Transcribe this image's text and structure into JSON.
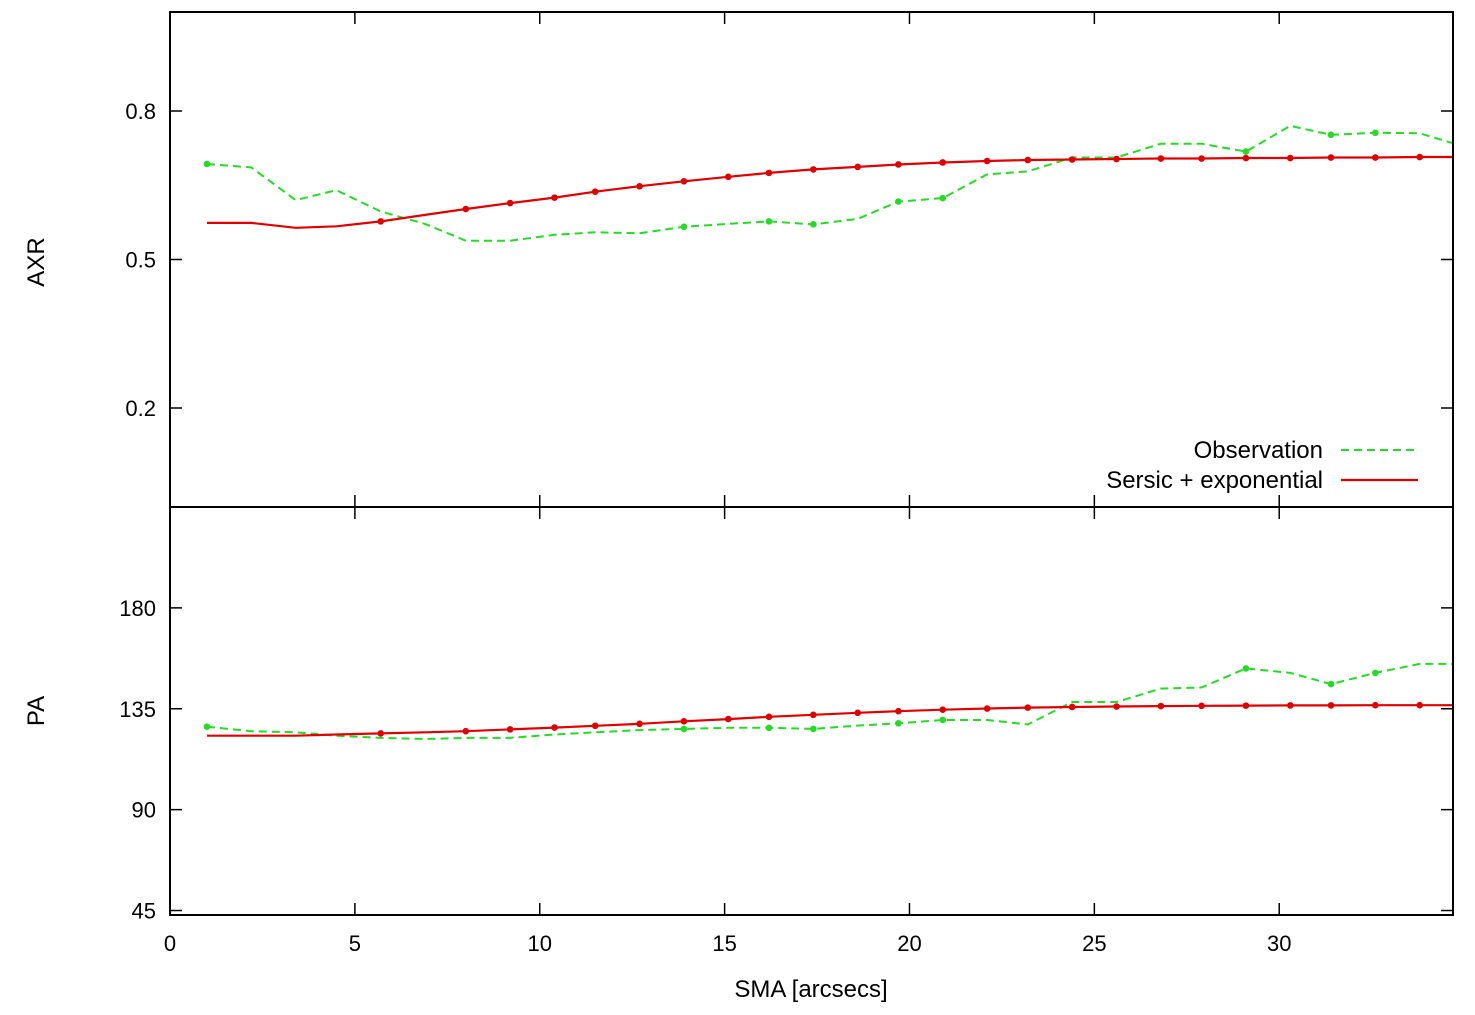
{
  "chart_data": {
    "type": "line",
    "x_label": "SMA [arcsecs]",
    "x_ticks": [
      0,
      5,
      10,
      15,
      20,
      25,
      30
    ],
    "xlim": [
      0,
      34.7
    ],
    "colors": {
      "observation": "#22dd22",
      "model": "#e00000"
    },
    "legend_position": "bottom-right of top panel",
    "panels": [
      {
        "ylabel": "AXR",
        "ylim": [
          0,
          1.0
        ],
        "y_ticks": [
          0.2,
          0.5,
          0.8
        ],
        "y_tick_labels": [
          "0.2",
          "0.5",
          "0.8"
        ],
        "series": [
          {
            "name": "Observation",
            "style": "dashed",
            "x": [
              1.0,
              2.2,
              3.4,
              4.5,
              5.7,
              6.9,
              8.0,
              9.2,
              10.4,
              11.5,
              12.7,
              13.9,
              15.1,
              16.2,
              17.4,
              18.6,
              19.7,
              20.9,
              22.1,
              23.2,
              24.4,
              25.6,
              26.8,
              27.9,
              29.1,
              30.3,
              31.4,
              32.6,
              33.8,
              34.7
            ],
            "y": [
              0.693,
              0.686,
              0.62,
              0.64,
              0.597,
              0.572,
              0.538,
              0.538,
              0.55,
              0.555,
              0.553,
              0.566,
              0.572,
              0.577,
              0.571,
              0.582,
              0.617,
              0.624,
              0.672,
              0.678,
              0.706,
              0.706,
              0.734,
              0.734,
              0.718,
              0.77,
              0.752,
              0.756,
              0.755,
              0.735
            ],
            "markers_at": [
              1.0,
              13.9,
              16.2,
              17.4,
              19.7,
              20.9,
              29.1,
              31.4,
              32.6
            ]
          },
          {
            "name": "Sersic + exponential",
            "style": "solid",
            "x": [
              1.0,
              2.2,
              3.4,
              4.5,
              5.7,
              6.9,
              8.0,
              9.2,
              10.4,
              11.5,
              12.7,
              13.9,
              15.1,
              16.2,
              17.4,
              18.6,
              19.7,
              20.9,
              22.1,
              23.2,
              24.4,
              25.6,
              26.8,
              27.9,
              29.1,
              30.3,
              31.4,
              32.6,
              33.8,
              34.7
            ],
            "y": [
              0.574,
              0.574,
              0.564,
              0.567,
              0.577,
              0.59,
              0.602,
              0.614,
              0.625,
              0.637,
              0.648,
              0.658,
              0.667,
              0.675,
              0.682,
              0.687,
              0.692,
              0.696,
              0.699,
              0.701,
              0.702,
              0.703,
              0.704,
              0.704,
              0.705,
              0.705,
              0.706,
              0.706,
              0.707,
              0.707
            ],
            "markers_at": [
              5.7,
              8.0,
              9.2,
              10.4,
              11.5,
              12.7,
              13.9,
              15.1,
              16.2,
              17.4,
              18.6,
              19.7,
              20.9,
              22.1,
              23.2,
              24.4,
              25.6,
              26.8,
              27.9,
              29.1,
              30.3,
              31.4,
              32.6,
              33.8
            ]
          }
        ]
      },
      {
        "ylabel": "PA",
        "ylim": [
          43,
          225
        ],
        "y_ticks": [
          45,
          90,
          135,
          180
        ],
        "y_tick_labels": [
          "45",
          "90",
          "135",
          "180"
        ],
        "series": [
          {
            "name": "Observation",
            "style": "dashed",
            "x": [
              1.0,
              2.2,
              3.4,
              4.5,
              5.7,
              6.9,
              8.0,
              9.2,
              10.4,
              11.5,
              12.7,
              13.9,
              15.1,
              16.2,
              17.4,
              18.6,
              19.7,
              20.9,
              22.1,
              23.2,
              24.4,
              25.6,
              26.8,
              27.9,
              29.1,
              30.3,
              31.4,
              32.6,
              33.8,
              34.7
            ],
            "y": [
              127.0,
              125.0,
              124.5,
              123.0,
              122.0,
              121.5,
              122.0,
              122.0,
              123.5,
              124.5,
              125.5,
              126.0,
              126.5,
              126.5,
              126.0,
              127.5,
              128.5,
              130.0,
              130.0,
              128.0,
              138.0,
              138.0,
              144.0,
              144.5,
              153.0,
              151.0,
              146.0,
              151.0,
              155.0,
              155.0
            ],
            "markers_at": [
              1.0,
              13.9,
              16.2,
              17.4,
              19.7,
              20.9,
              29.1,
              31.4,
              32.6
            ]
          },
          {
            "name": "Sersic + exponential",
            "style": "solid",
            "x": [
              1.0,
              2.2,
              3.4,
              4.5,
              5.7,
              6.9,
              8.0,
              9.2,
              10.4,
              11.5,
              12.7,
              13.9,
              15.1,
              16.2,
              17.4,
              18.6,
              19.7,
              20.9,
              22.1,
              23.2,
              24.4,
              25.6,
              26.8,
              27.9,
              29.1,
              30.3,
              31.4,
              32.6,
              33.8,
              34.7
            ],
            "y": [
              123.0,
              123.0,
              123.0,
              123.5,
              124.0,
              124.5,
              125.0,
              125.8,
              126.6,
              127.4,
              128.3,
              129.4,
              130.4,
              131.4,
              132.3,
              133.2,
              133.9,
              134.6,
              135.1,
              135.5,
              135.8,
              136.0,
              136.2,
              136.3,
              136.4,
              136.5,
              136.5,
              136.6,
              136.6,
              136.6
            ],
            "markers_at": [
              5.7,
              8.0,
              9.2,
              10.4,
              11.5,
              12.7,
              13.9,
              15.1,
              16.2,
              17.4,
              18.6,
              19.7,
              20.9,
              22.1,
              23.2,
              24.4,
              25.6,
              26.8,
              27.9,
              29.1,
              30.3,
              31.4,
              32.6,
              33.8
            ]
          }
        ]
      }
    ]
  }
}
